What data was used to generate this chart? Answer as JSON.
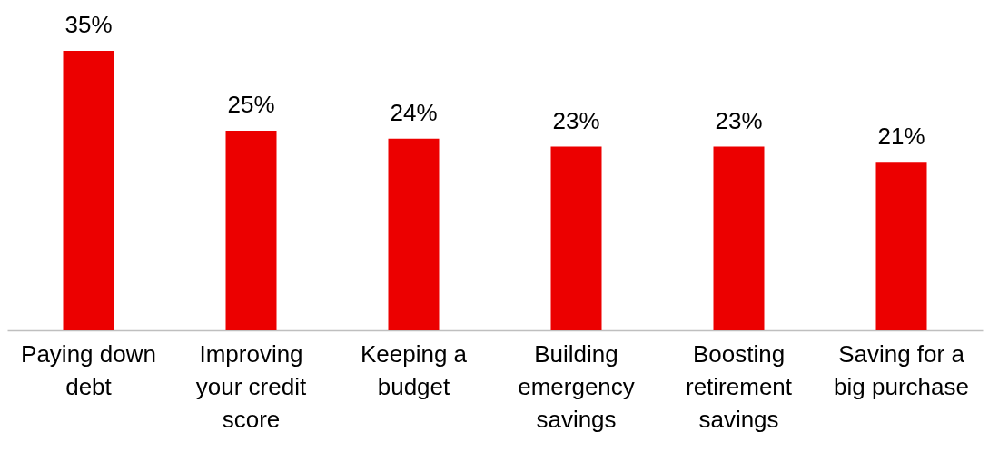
{
  "chart_data": {
    "type": "bar",
    "categories": [
      "Paying down debt",
      "Improving your credit score",
      "Keeping a budget",
      "Building emergency savings",
      "Boosting retirement savings",
      "Saving for a big purchase"
    ],
    "values": [
      35,
      25,
      24,
      23,
      23,
      21
    ],
    "value_labels": [
      "35%",
      "25%",
      "24%",
      "23%",
      "23%",
      "21%"
    ],
    "color": "#ec0000"
  }
}
